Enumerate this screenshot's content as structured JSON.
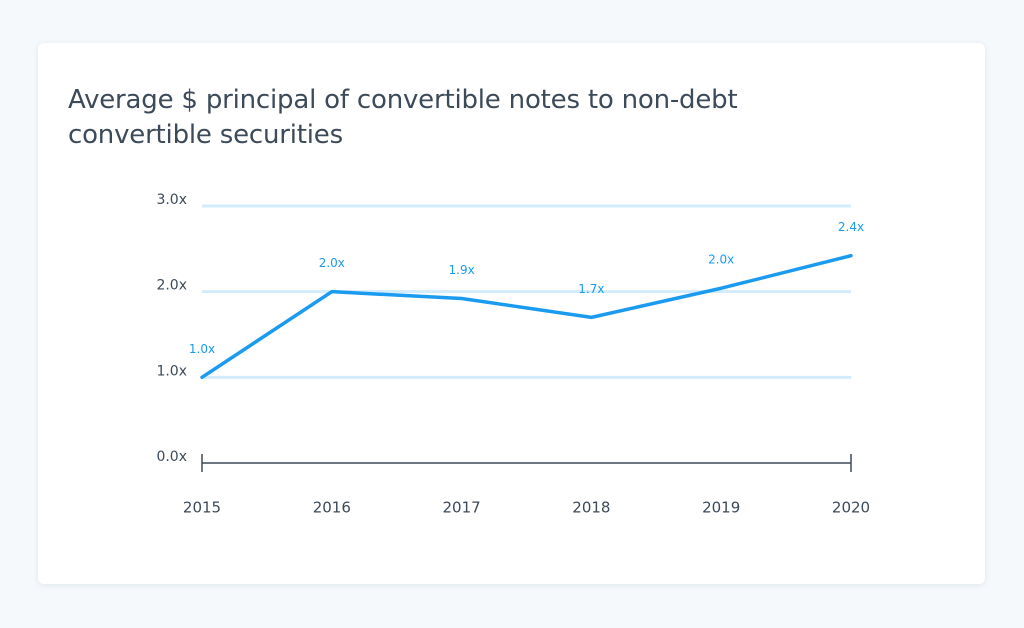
{
  "chart_data": {
    "type": "line",
    "title": "Average $ principal of convertible notes to non-debt convertible securities",
    "categories": [
      "2015",
      "2016",
      "2017",
      "2018",
      "2019",
      "2020"
    ],
    "values": [
      1.0,
      2.0,
      1.92,
      1.7,
      2.04,
      2.42
    ],
    "value_labels": [
      "1.0x",
      "2.0x",
      "1.9x",
      "1.7x",
      "2.0x",
      "2.4x"
    ],
    "color": "#1a9bf0",
    "ylim": [
      0,
      3
    ],
    "yticks": [
      {
        "value": 0,
        "label": "0.0x"
      },
      {
        "value": 1,
        "label": "1.0x"
      },
      {
        "value": 2,
        "label": "2.0x"
      },
      {
        "value": 3,
        "label": "3.0x"
      }
    ],
    "grid": true
  }
}
